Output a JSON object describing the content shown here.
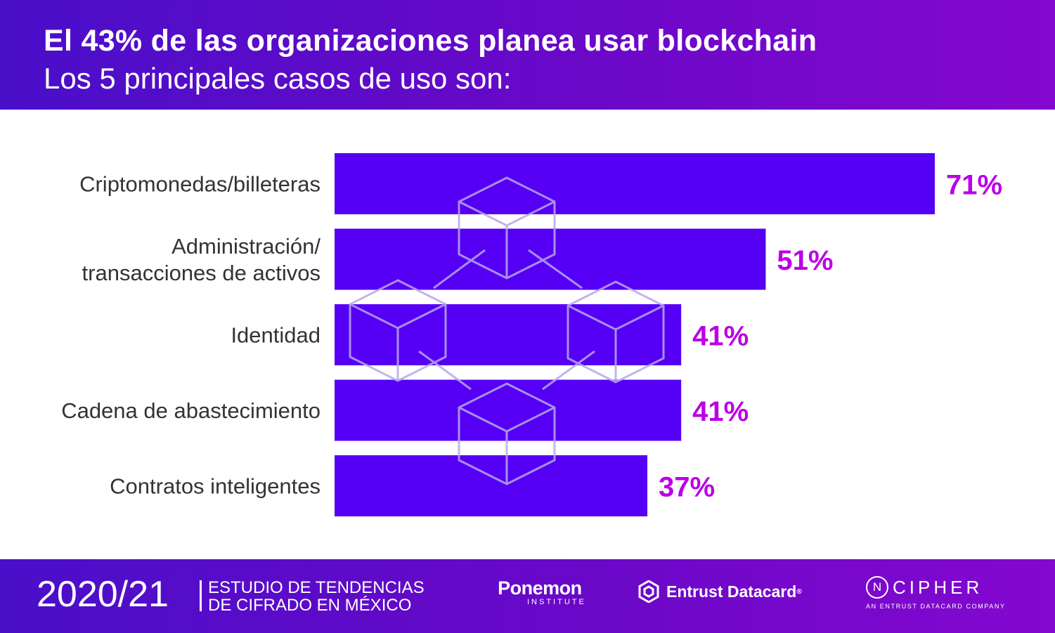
{
  "header": {
    "title": "El 43% de las organizaciones planea usar blockchain",
    "subtitle": "Los 5 principales casos de uso son:"
  },
  "chart_data": {
    "type": "bar",
    "orientation": "horizontal",
    "title": "",
    "xlabel": "",
    "ylabel": "",
    "xlim": [
      0,
      71
    ],
    "grid": false,
    "categories": [
      [
        "Criptomonedas/billeteras"
      ],
      [
        "Administración/",
        "transacciones de activos"
      ],
      [
        "Identidad"
      ],
      [
        "Cadena de abastecimiento"
      ],
      [
        "Contratos inteligentes"
      ]
    ],
    "values": [
      71,
      51,
      41,
      41,
      37
    ],
    "value_labels": [
      "71%",
      "51%",
      "41%",
      "41%",
      "37%"
    ],
    "colors": {
      "bar": "#5500f5",
      "value": "#bb00e6",
      "label": "#333333",
      "watermark": "#b8a8ea"
    }
  },
  "footer": {
    "year": "2020/21",
    "study_line1": "ESTUDIO DE TENDENCIAS",
    "study_line2": "DE CIFRADO EN MÉXICO",
    "ponemon_name": "Ponemon",
    "ponemon_sub": "INSTITUTE",
    "entrust_name": "Entrust Datacard",
    "entrust_reg": "®",
    "ncipher_n": "N",
    "ncipher_name": "CIPHER",
    "ncipher_sub": "AN ENTRUST DATACARD COMPANY"
  }
}
